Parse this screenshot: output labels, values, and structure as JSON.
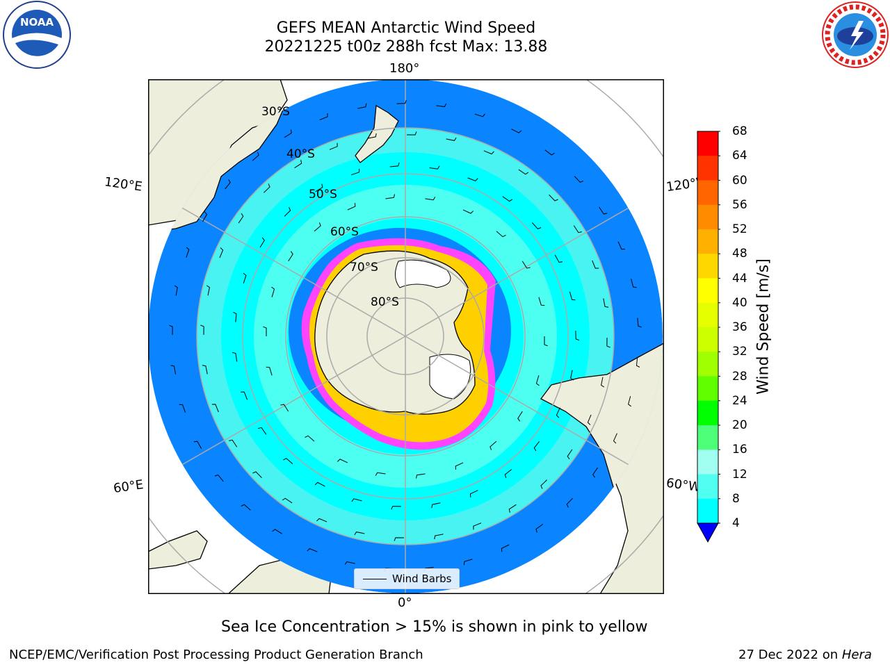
{
  "header": {
    "title_line1": "GEFS MEAN Antarctic Wind Speed",
    "title_line2": "20221225 t00z 288h fcst   Max: 13.88"
  },
  "logos": {
    "noaa_text": "NOAA",
    "noaa_ring_text": "NATIONAL OCEANIC AND ATMOSPHERIC ADMINISTRATION · U.S. DEPARTMENT OF COMMERCE",
    "nws_ring_text": "NATIONAL WEATHER SERVICE"
  },
  "map": {
    "projection": "south-polar-stereographic",
    "longitude_labels": {
      "top": "180°",
      "bottom": "0°",
      "upper_left": "120°E",
      "lower_left": "60°E",
      "upper_right": "120°W",
      "lower_right": "60°W"
    },
    "latitude_labels": [
      "30°S",
      "40°S",
      "50°S",
      "60°S",
      "70°S",
      "80°S"
    ],
    "legend_label": "Wind Barbs",
    "colors": {
      "land": "#eeeedc",
      "ws_4_8": "#0a84ff",
      "ws_8_12": "#00ffff",
      "ws_12_16": "#4ffff5",
      "sea_ice_low": "#ff44ff",
      "sea_ice_high": "#ffd000"
    }
  },
  "colorbar": {
    "label": "Wind Speed [m/s]",
    "ticks": [
      "68",
      "64",
      "60",
      "56",
      "52",
      "48",
      "44",
      "40",
      "36",
      "32",
      "28",
      "24",
      "20",
      "16",
      "12",
      "8",
      "4"
    ],
    "colors": [
      "#ff0000",
      "#ff3300",
      "#ff6600",
      "#ff8c00",
      "#ffb000",
      "#ffd700",
      "#ffff00",
      "#e6ff00",
      "#ccff00",
      "#a0ff00",
      "#60ff00",
      "#00ff00",
      "#4dff78",
      "#a0fff0",
      "#50fff0",
      "#00ffff",
      "#0a84ff"
    ],
    "extend_color": "#0000ff"
  },
  "footer": {
    "note": "Sea Ice Concentration > 15% is shown in pink to yellow",
    "credit": "NCEP/EMC/Verification Post Processing Product Generation Branch",
    "date": "27 Dec 2022 on ",
    "machine": "Hera"
  }
}
